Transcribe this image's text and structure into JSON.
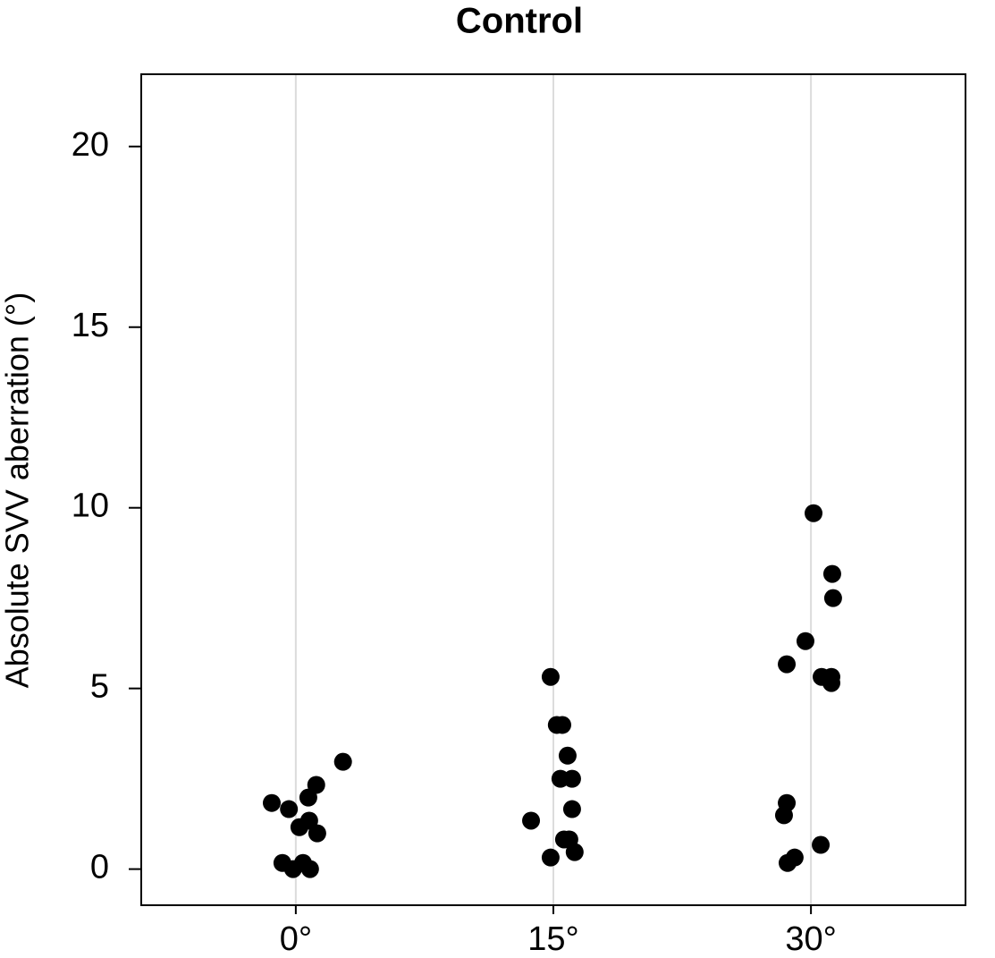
{
  "chart_data": {
    "type": "scatter",
    "title": "Control",
    "y_label": "Absolute SVV aberration (°)",
    "xlim": [
      -9,
      39
    ],
    "ylim": [
      -1,
      22
    ],
    "xticks": [
      {
        "value": 0,
        "label": "0°"
      },
      {
        "value": 15,
        "label": "15°"
      },
      {
        "value": 30,
        "label": "30°"
      }
    ],
    "yticks": [
      0,
      5,
      10,
      15,
      20
    ],
    "grid": "x",
    "series": [
      {
        "color": "#000000",
        "x": [
          -1.4,
          -0.4,
          2.75,
          1.19,
          0.73,
          0.21,
          0.78,
          1.25,
          -0.78,
          0.42,
          -0.16,
          0.83,
          14.84,
          15.2,
          15.52,
          15.83,
          15.41,
          16.09,
          16.09,
          13.7,
          15.62,
          15.93,
          14.84,
          16.24,
          30.15,
          31.24,
          31.29,
          29.68,
          28.59,
          30.62,
          31.19,
          31.19,
          28.59,
          28.43,
          30.57,
          29.05,
          28.64
        ],
        "values": [
          1.83,
          1.66,
          2.97,
          2.33,
          1.98,
          1.16,
          1.34,
          0.99,
          0.17,
          0.17,
          0,
          0,
          5.32,
          3.99,
          3.99,
          3.14,
          2.5,
          2.5,
          1.66,
          1.34,
          0.82,
          0.82,
          0.32,
          0.47,
          9.85,
          8.17,
          7.5,
          6.31,
          5.67,
          5.32,
          5.32,
          5.15,
          1.83,
          1.49,
          0.67,
          0.32,
          0.17
        ]
      }
    ]
  }
}
